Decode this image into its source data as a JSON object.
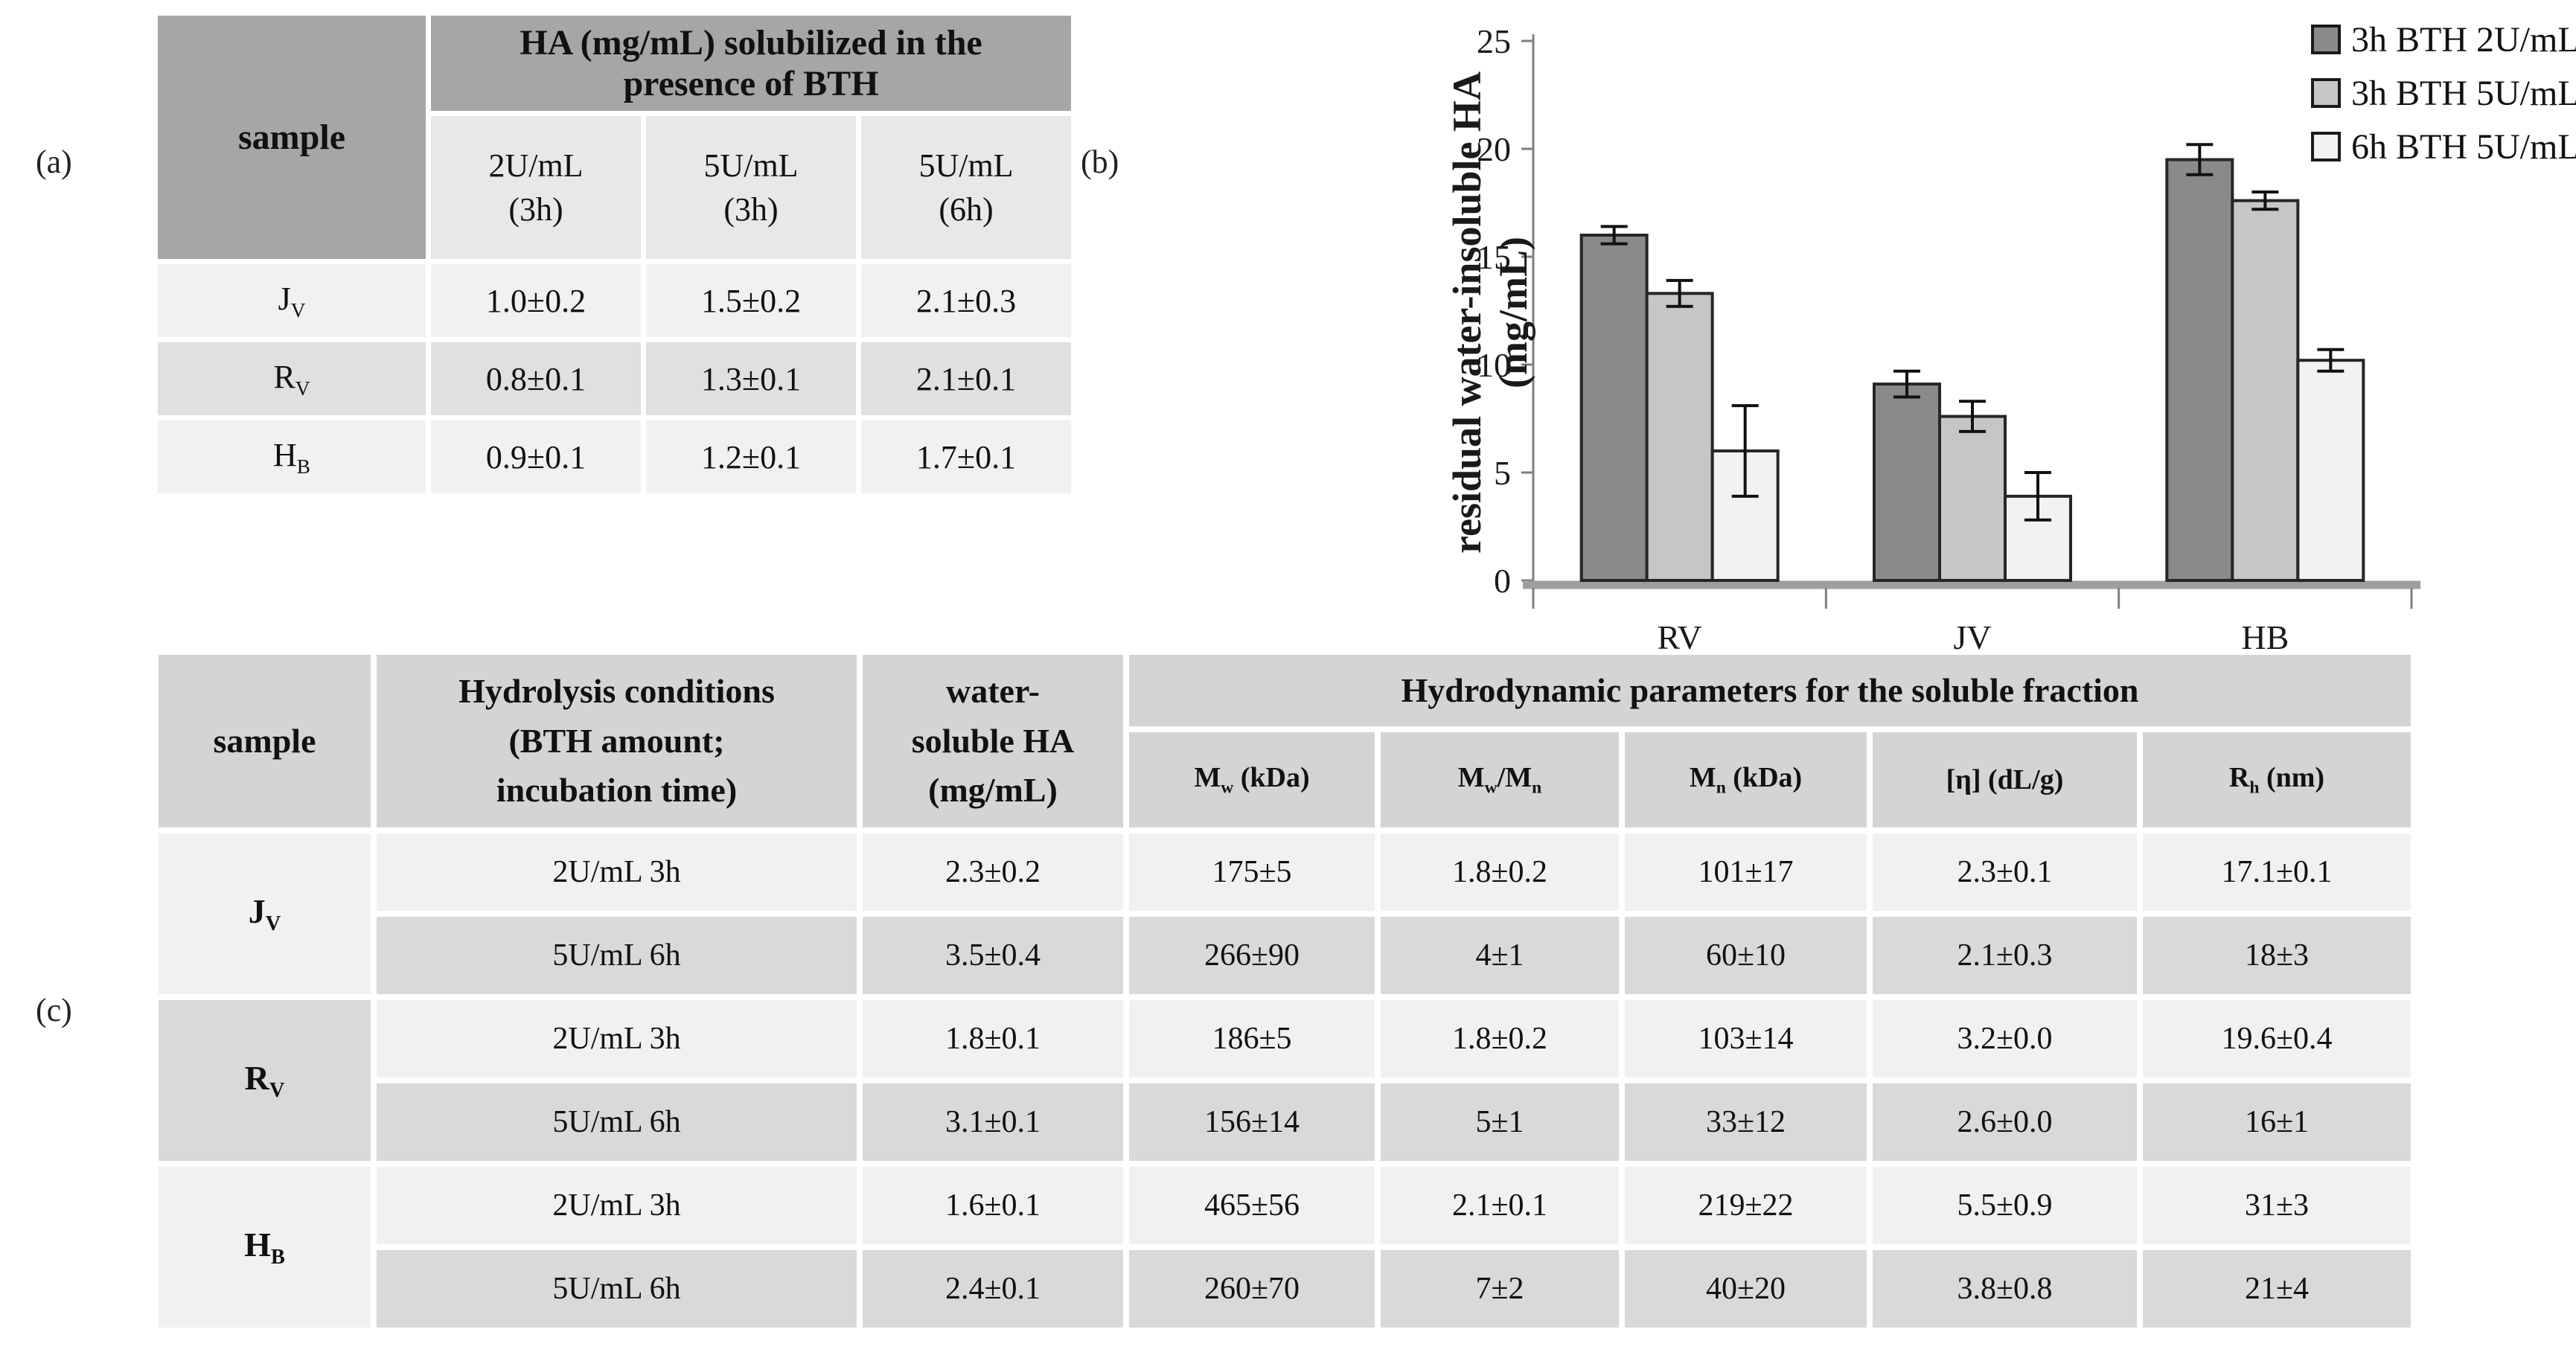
{
  "panel_labels": {
    "a": "(a)",
    "b": "(b)",
    "c": "(c)"
  },
  "colors": {
    "table_header_dark": "#a6a6a6",
    "table_subheader": "#e8e8e8",
    "row_light": "#f1f1f1",
    "row_mid": "#e0e0e0",
    "table_c_header": "#d4d4d4",
    "row_dark_c": "#d9d9d9",
    "axis_gray": "#9e9e9e",
    "bar_border": "#262626"
  },
  "table_a": {
    "sample_header": "sample",
    "header_line1": "HA (mg/mL) solubilized in the",
    "header_line2": "presence of BTH",
    "conditions": [
      {
        "line1": "2U/mL",
        "line2": "(3h)"
      },
      {
        "line1": "5U/mL",
        "line2": "(3h)"
      },
      {
        "line1": "5U/mL",
        "line2": "(6h)"
      }
    ],
    "rows": [
      {
        "sample": {
          "base": "J",
          "sub": "V"
        },
        "values": [
          "1.0±0.2",
          "1.5±0.2",
          "2.1±0.3"
        ]
      },
      {
        "sample": {
          "base": "R",
          "sub": "V"
        },
        "values": [
          "0.8±0.1",
          "1.3±0.1",
          "2.1±0.1"
        ]
      },
      {
        "sample": {
          "base": "H",
          "sub": "B"
        },
        "values": [
          "0.9±0.1",
          "1.2±0.1",
          "1.7±0.1"
        ]
      }
    ]
  },
  "chart_data": {
    "type": "bar",
    "title": "",
    "ylabel_line1": "residual water-insoluble HA",
    "ylabel_line2": "(mg/mL)",
    "categories": [
      "RV",
      "JV",
      "HB"
    ],
    "series": [
      {
        "name": "3h BTH 2U/mL",
        "color": "#8a8a8a",
        "values": [
          16.0,
          9.1,
          19.5
        ],
        "errors": [
          0.4,
          0.6,
          0.7
        ]
      },
      {
        "name": "3h BTH 5U/mL",
        "color": "#c6c6c6",
        "values": [
          13.3,
          7.6,
          17.6
        ],
        "errors": [
          0.6,
          0.7,
          0.4
        ]
      },
      {
        "name": "6h BTH 5U/mL",
        "color": "#f2f2f2",
        "values": [
          6.0,
          3.9,
          10.2
        ],
        "errors": [
          2.1,
          1.1,
          0.5
        ]
      }
    ],
    "ylim": [
      0,
      25
    ],
    "yticks": [
      0,
      5,
      10,
      15,
      20,
      25
    ],
    "legend_position": "top-right",
    "grid": false
  },
  "table_c": {
    "sample_header": "sample",
    "hydrolysis_header": {
      "line1": "Hydrolysis conditions",
      "line2": "(BTH amount;",
      "line3": "incubation time)"
    },
    "soluble_header": {
      "line1": "water-",
      "line2": "soluble HA",
      "line3": "(mg/mL)"
    },
    "hydro_header": "Hydrodynamic parameters for the soluble fraction",
    "param_headers": [
      {
        "pre": "M",
        "sub": "w",
        "post": " (kDa)"
      },
      {
        "pre": "M",
        "sub": "w",
        "mid": "/M",
        "sub2": "n"
      },
      {
        "pre": "M",
        "sub": "n",
        "post": " (kDa)"
      },
      {
        "pre": "[η] (dL/g)"
      },
      {
        "pre": "R",
        "sub": "h",
        "post": " (nm)"
      }
    ],
    "samples": [
      {
        "base": "J",
        "sub": "V"
      },
      {
        "base": "R",
        "sub": "V"
      },
      {
        "base": "H",
        "sub": "B"
      }
    ],
    "rows": [
      {
        "condition": "2U/mL 3h",
        "soluble": "2.3±0.2",
        "mw": "175±5",
        "mwmn": "1.8±0.2",
        "mn": "101±17",
        "eta": "2.3±0.1",
        "rh": "17.1±0.1"
      },
      {
        "condition": "5U/mL 6h",
        "soluble": "3.5±0.4",
        "mw": "266±90",
        "mwmn": "4±1",
        "mn": "60±10",
        "eta": "2.1±0.3",
        "rh": "18±3"
      },
      {
        "condition": "2U/mL 3h",
        "soluble": "1.8±0.1",
        "mw": "186±5",
        "mwmn": "1.8±0.2",
        "mn": "103±14",
        "eta": "3.2±0.0",
        "rh": "19.6±0.4"
      },
      {
        "condition": "5U/mL 6h",
        "soluble": "3.1±0.1",
        "mw": "156±14",
        "mwmn": "5±1",
        "mn": "33±12",
        "eta": "2.6±0.0",
        "rh": "16±1"
      },
      {
        "condition": "2U/mL 3h",
        "soluble": "1.6±0.1",
        "mw": "465±56",
        "mwmn": "2.1±0.1",
        "mn": "219±22",
        "eta": "5.5±0.9",
        "rh": "31±3"
      },
      {
        "condition": "5U/mL 6h",
        "soluble": "2.4±0.1",
        "mw": "260±70",
        "mwmn": "7±2",
        "mn": "40±20",
        "eta": "3.8±0.8",
        "rh": "21±4"
      }
    ]
  }
}
